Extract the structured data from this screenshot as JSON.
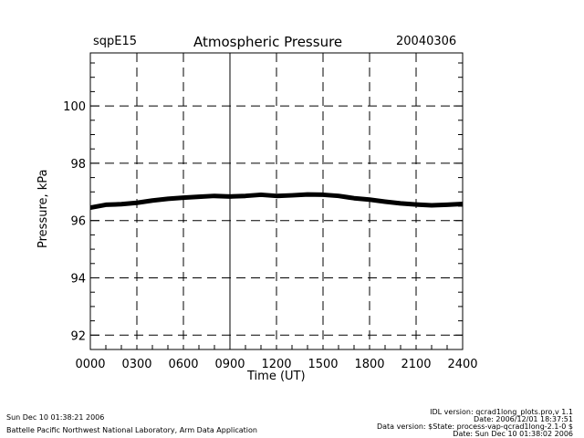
{
  "chart_data": {
    "type": "line",
    "title": "Atmospheric Pressure",
    "site": "sqpE15",
    "date": "20040306",
    "xlabel": "Time (UT)",
    "ylabel": "Pressure, kPa",
    "xlim": [
      0,
      2400
    ],
    "ylim": [
      91.5,
      101.85
    ],
    "grid": true,
    "xticks": [
      "0000",
      "0300",
      "0600",
      "0900",
      "1200",
      "1500",
      "1800",
      "2100",
      "2400"
    ],
    "yticks": [
      "92",
      "94",
      "96",
      "98",
      "100"
    ],
    "series": [
      {
        "name": "Pressure",
        "x": [
          0,
          100,
          200,
          300,
          400,
          500,
          600,
          700,
          800,
          900,
          1000,
          1100,
          1200,
          1300,
          1400,
          1500,
          1600,
          1700,
          1800,
          1900,
          2000,
          2100,
          2200,
          2300,
          2400
        ],
        "y": [
          96.45,
          96.55,
          96.57,
          96.62,
          96.7,
          96.76,
          96.8,
          96.83,
          96.86,
          96.84,
          96.86,
          96.9,
          96.86,
          96.88,
          96.91,
          96.9,
          96.86,
          96.78,
          96.73,
          96.66,
          96.6,
          96.56,
          96.53,
          96.55,
          96.58
        ]
      }
    ]
  },
  "footer": {
    "run_time": "Sun Dec 10 01:38:21 2006",
    "institution": "Battelle Pacific Northwest National Laboratory, Arm Data Application",
    "idl_version": "IDL version: qcrad1long_plots.pro,v 1.1",
    "idl_date": "Date: 2006/12/01 18:37:51",
    "data_version": "Data version: $State: process-vap-qcrad1long-2.1-0 $",
    "data_date": "Date: Sun Dec 10 01:38:02 2006"
  }
}
